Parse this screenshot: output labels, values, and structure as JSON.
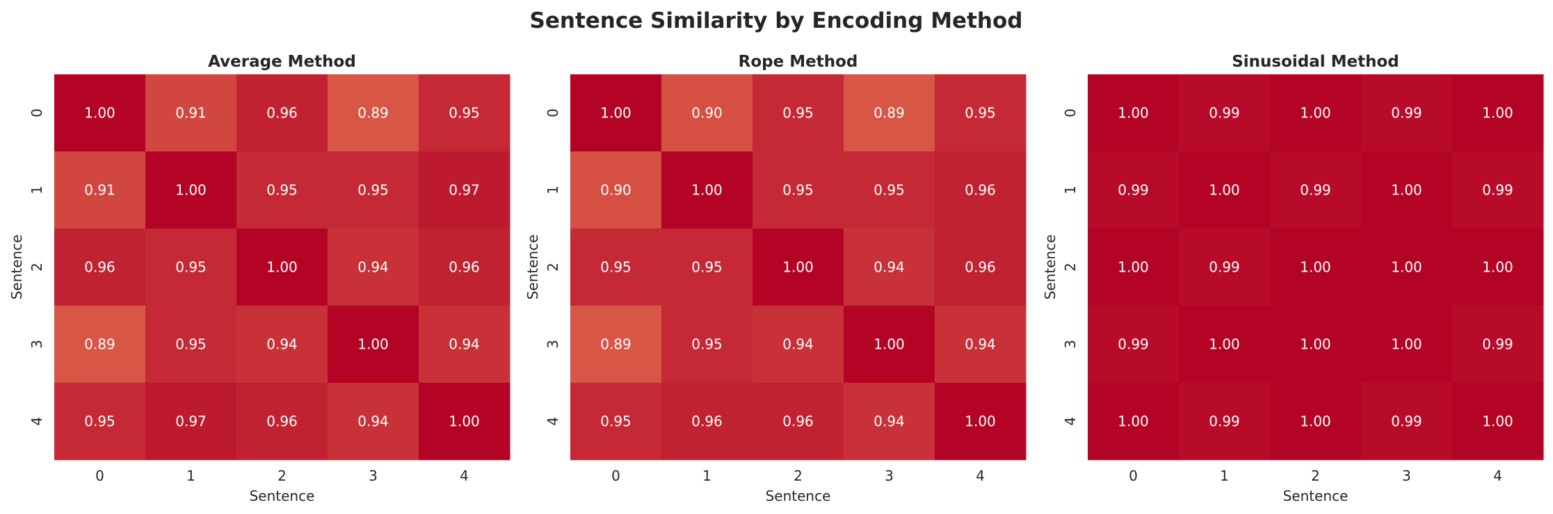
{
  "chart_data": {
    "type": "heatmap",
    "title": "Sentence Similarity by Encoding Method",
    "colormap": "coolwarm",
    "colorbar": false,
    "annotation_format": "0.00",
    "panels": [
      {
        "title": "Average Method",
        "xlabel": "Sentence",
        "ylabel": "Sentence",
        "x_ticks": [
          "0",
          "1",
          "2",
          "3",
          "4"
        ],
        "y_ticks": [
          "0",
          "1",
          "2",
          "3",
          "4"
        ],
        "values": [
          [
            1.0,
            0.91,
            0.96,
            0.89,
            0.95
          ],
          [
            0.91,
            1.0,
            0.95,
            0.95,
            0.97
          ],
          [
            0.96,
            0.95,
            1.0,
            0.94,
            0.96
          ],
          [
            0.89,
            0.95,
            0.94,
            1.0,
            0.94
          ],
          [
            0.95,
            0.97,
            0.96,
            0.94,
            1.0
          ]
        ]
      },
      {
        "title": "Rope Method",
        "xlabel": "Sentence",
        "ylabel": "Sentence",
        "x_ticks": [
          "0",
          "1",
          "2",
          "3",
          "4"
        ],
        "y_ticks": [
          "0",
          "1",
          "2",
          "3",
          "4"
        ],
        "values": [
          [
            1.0,
            0.9,
            0.95,
            0.89,
            0.95
          ],
          [
            0.9,
            1.0,
            0.95,
            0.95,
            0.96
          ],
          [
            0.95,
            0.95,
            1.0,
            0.94,
            0.96
          ],
          [
            0.89,
            0.95,
            0.94,
            1.0,
            0.94
          ],
          [
            0.95,
            0.96,
            0.96,
            0.94,
            1.0
          ]
        ]
      },
      {
        "title": "Sinusoidal Method",
        "xlabel": "Sentence",
        "ylabel": "Sentence",
        "x_ticks": [
          "0",
          "1",
          "2",
          "3",
          "4"
        ],
        "y_ticks": [
          "0",
          "1",
          "2",
          "3",
          "4"
        ],
        "values": [
          [
            1.0,
            0.99,
            1.0,
            0.99,
            1.0
          ],
          [
            0.99,
            1.0,
            0.99,
            1.0,
            0.99
          ],
          [
            1.0,
            0.99,
            1.0,
            1.0,
            1.0
          ],
          [
            0.99,
            1.0,
            1.0,
            1.0,
            0.99
          ],
          [
            1.0,
            0.99,
            1.0,
            0.99,
            1.0
          ]
        ]
      }
    ]
  }
}
